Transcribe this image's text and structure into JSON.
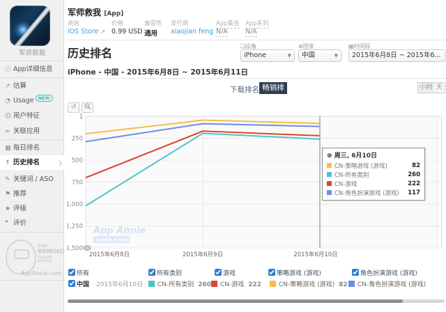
{
  "app_header": {
    "title": "军师救我",
    "title_suffix": "[App]",
    "fields": [
      {
        "label": "商店",
        "value": "iOS Store"
      },
      {
        "label": "价格",
        "value": "0.99 USD"
      },
      {
        "label": "兼容性",
        "value": "通用"
      },
      {
        "label": "发行商",
        "value": "xiaojian feng"
      },
      {
        "label": "App集合",
        "value": "N/A"
      },
      {
        "label": "App系列",
        "value": "N/A"
      }
    ],
    "external_link_icon": "↗"
  },
  "sidebar": {
    "app_caption": "军师救我",
    "items": [
      {
        "label": "App详细信息",
        "icon": "ⓘ"
      },
      {
        "label": "估算",
        "icon": "↗"
      },
      {
        "label": "Usage",
        "icon": "◔",
        "badge": "NEW"
      },
      {
        "label": "用户特征",
        "icon": "☺"
      },
      {
        "label": "关联应用",
        "icon": "∞"
      },
      {
        "label": "每日排名",
        "icon": "▦"
      },
      {
        "label": "历史排名",
        "icon": "↑",
        "active": true
      },
      {
        "label": "关键词 / ASO",
        "icon": "✎"
      },
      {
        "label": "推荐",
        "icon": "⚑"
      },
      {
        "label": "评级",
        "icon": "★"
      },
      {
        "label": "评价",
        "icon": "❞"
      }
    ],
    "branding": {
      "line1": "THE MATH",
      "line2": "BEHIND",
      "line3": "THE APP STORES",
      "site": "AppAnnie.com"
    }
  },
  "page": {
    "title": "历史排名",
    "subtitle": "iPhone - 中国 - 2015年6月8日 ~ 2015年6月11日",
    "filters": [
      {
        "label": "设备",
        "icon": "❏",
        "value": "iPhone"
      },
      {
        "label": "国家",
        "icon": "⊕",
        "value": "中国"
      },
      {
        "label": "时间段",
        "icon": "▦",
        "value": "2015年6月8日 ~ 2015年6..."
      }
    ],
    "tabs": {
      "downloads": "下载排名",
      "grossing": "畅销排名"
    },
    "granularity": {
      "hour": "小时",
      "day": "天"
    },
    "chart_buttons": {
      "reset": "↺"
    }
  },
  "chart_data": {
    "type": "line",
    "title": "",
    "inverted_y": true,
    "x_labels": [
      "2015年6月8日",
      "2015年6月9日",
      "2015年6月10日"
    ],
    "ylim": [
      1,
      1500
    ],
    "yticks": [
      1,
      250,
      500,
      750,
      1000,
      1250,
      1500
    ],
    "grid": true,
    "watermark": {
      "line1": "App Annie",
      "line2": "STORE STATS"
    },
    "series": [
      {
        "name": "CN-策略游戏 (游戏)",
        "color": "#f7bd45",
        "values": [
          200,
          45,
          82
        ]
      },
      {
        "name": "CN-角色扮演游戏 (游戏)",
        "color": "#6d8ce5",
        "values": [
          290,
          85,
          117
        ]
      },
      {
        "name": "CN-游戏",
        "color": "#e0432d",
        "values": [
          700,
          170,
          222
        ]
      },
      {
        "name": "CN-所有类别",
        "color": "#4cc5c8",
        "values": [
          1020,
          195,
          260
        ]
      }
    ]
  },
  "tooltip": {
    "icon": "⊕",
    "date_label": "周三, 6月10日",
    "rows": [
      {
        "name": "CN-策略游戏 (游戏)",
        "value": "82",
        "color": "#f7bd45"
      },
      {
        "name": "CN-所有类别",
        "value": "260",
        "color": "#4cc5c8"
      },
      {
        "name": "CN-游戏",
        "value": "222",
        "color": "#e0432d"
      },
      {
        "name": "CN-角色扮演游戏 (游戏)",
        "value": "117",
        "color": "#6d8ce5"
      }
    ]
  },
  "legend": {
    "filters": [
      {
        "label": "所有"
      },
      {
        "label": "所有类别"
      },
      {
        "label": "游戏"
      },
      {
        "label": "策略游戏 (游戏)"
      },
      {
        "label": "角色扮演游戏 (游戏)"
      }
    ],
    "selection": {
      "country": "中国",
      "date": "2015年6月10日",
      "entries": [
        {
          "name": "CN-所有类别",
          "value": "260",
          "color": "#4cc5c8"
        },
        {
          "name": "CN-游戏",
          "value": "222",
          "color": "#e0432d"
        },
        {
          "name": "CN-策略游戏 (游戏)",
          "value": "82",
          "color": "#f7bd45"
        },
        {
          "name": "CN-角色扮演游戏 (游戏)",
          "value": "",
          "color": "#6d8ce5"
        }
      ]
    }
  }
}
